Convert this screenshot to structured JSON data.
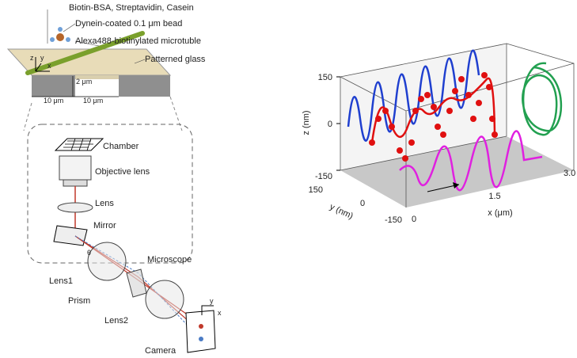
{
  "setup": {
    "layers": "Biotin-BSA, Streptavidin, Casein",
    "bead": "Dynein-coated 0.1 μm bead",
    "microtubule": "Alexa488-biotinylated microtuble",
    "glass": "Patterned glass",
    "axis_z": "z",
    "axis_y": "y",
    "axis_x": "x",
    "height": "2 μm",
    "width_left": "10 μm",
    "width_right": "10 μm",
    "chamber": "Chamber",
    "objective": "Objective lens",
    "lens": "Lens",
    "mirror": "Mirror",
    "theta": "θ",
    "lens1": "Lens1",
    "microscope": "Microscope",
    "prism": "Prism",
    "lens2": "Lens2",
    "camera": "Camera",
    "camera_y": "y",
    "camera_x": "x"
  },
  "trajectory": {
    "z_label": "z (nm)",
    "y_label": "y (nm)",
    "x_label": "x (μm)",
    "z_ticks": [
      "150",
      "0",
      "-150"
    ],
    "y_ticks": [
      "150",
      "0",
      "-150"
    ],
    "x_ticks": [
      "0",
      "1.5",
      "3.0"
    ]
  }
}
